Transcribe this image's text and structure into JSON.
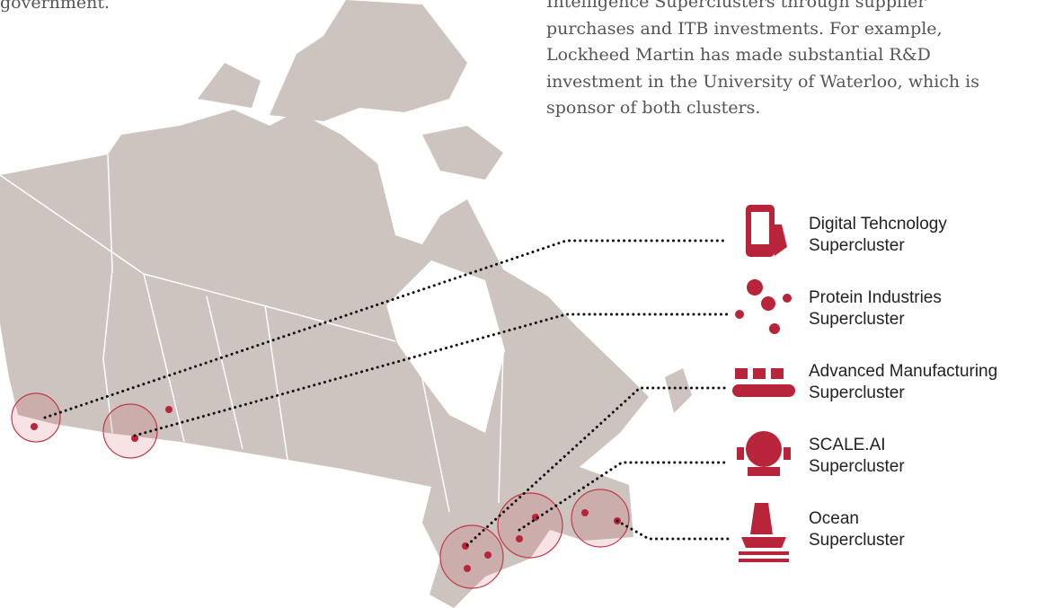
{
  "intro_fragment": "government.",
  "paragraph_lines": [
    "Intelligence Superclusters through supplier",
    "purchases and ITB investments. For example,",
    "Lockheed Martin has made substantial R&D",
    "investment in the University of Waterloo, which is",
    "sponsor of both clusters."
  ],
  "legend": [
    {
      "label": [
        "Digital Tehcnology",
        "Supercluster"
      ]
    },
    {
      "label": [
        "Protein Industries",
        "Supercluster"
      ]
    },
    {
      "label": [
        "Advanced Manufacturing",
        "Supercluster"
      ]
    },
    {
      "label": [
        "SCALE.AI",
        "Supercluster"
      ]
    },
    {
      "label": [
        "Ocean",
        "Supercluster"
      ]
    }
  ]
}
